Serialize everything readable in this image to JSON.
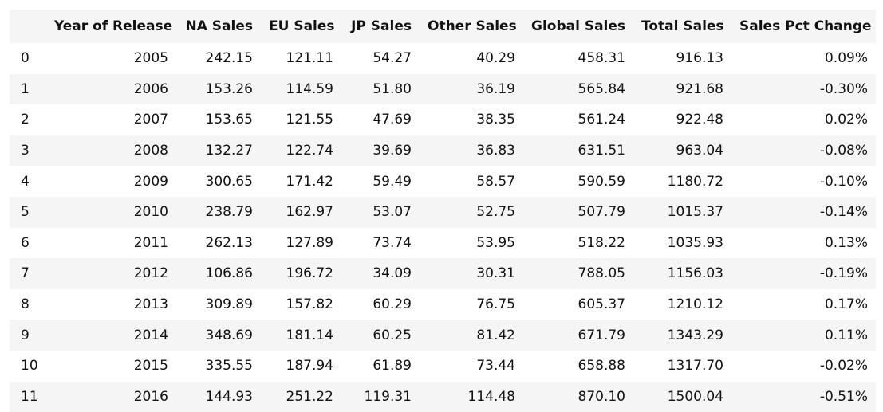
{
  "table": {
    "columns": [
      "",
      "Year of Release",
      "NA Sales",
      "EU Sales",
      "JP Sales",
      "Other Sales",
      "Global Sales",
      "Total Sales",
      "Sales Pct Change"
    ],
    "rows": [
      [
        "0",
        "2005",
        "242.15",
        "121.11",
        "54.27",
        "40.29",
        "458.31",
        "916.13",
        "0.09%"
      ],
      [
        "1",
        "2006",
        "153.26",
        "114.59",
        "51.80",
        "36.19",
        "565.84",
        "921.68",
        "-0.30%"
      ],
      [
        "2",
        "2007",
        "153.65",
        "121.55",
        "47.69",
        "38.35",
        "561.24",
        "922.48",
        "0.02%"
      ],
      [
        "3",
        "2008",
        "132.27",
        "122.74",
        "39.69",
        "36.83",
        "631.51",
        "963.04",
        "-0.08%"
      ],
      [
        "4",
        "2009",
        "300.65",
        "171.42",
        "59.49",
        "58.57",
        "590.59",
        "1180.72",
        "-0.10%"
      ],
      [
        "5",
        "2010",
        "238.79",
        "162.97",
        "53.07",
        "52.75",
        "507.79",
        "1015.37",
        "-0.14%"
      ],
      [
        "6",
        "2011",
        "262.13",
        "127.89",
        "73.74",
        "53.95",
        "518.22",
        "1035.93",
        "0.13%"
      ],
      [
        "7",
        "2012",
        "106.86",
        "196.72",
        "34.09",
        "30.31",
        "788.05",
        "1156.03",
        "-0.19%"
      ],
      [
        "8",
        "2013",
        "309.89",
        "157.82",
        "60.29",
        "76.75",
        "605.37",
        "1210.12",
        "0.17%"
      ],
      [
        "9",
        "2014",
        "348.69",
        "181.14",
        "60.25",
        "81.42",
        "671.79",
        "1343.29",
        "0.11%"
      ],
      [
        "10",
        "2015",
        "335.55",
        "187.94",
        "61.89",
        "73.44",
        "658.88",
        "1317.70",
        "-0.02%"
      ],
      [
        "11",
        "2016",
        "144.93",
        "251.22",
        "119.31",
        "114.48",
        "870.10",
        "1500.04",
        "-0.51%"
      ]
    ]
  },
  "colors": {
    "stripe": "#f5f5f5",
    "background": "#ffffff",
    "text": "#111111"
  }
}
